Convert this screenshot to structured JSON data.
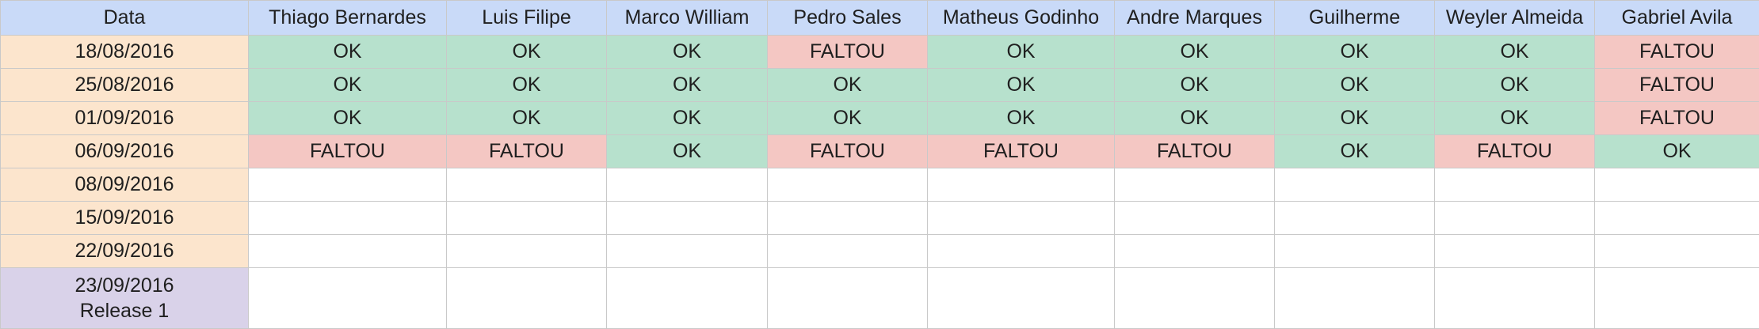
{
  "header": {
    "date_label": "Data",
    "people": [
      "Thiago Bernardes",
      "Luis Filipe",
      "Marco William",
      "Pedro Sales",
      "Matheus Godinho",
      "Andre Marques",
      "Guilherme",
      "Weyler Almeida",
      "Gabriel Avila"
    ]
  },
  "rows": [
    {
      "date": "18/08/2016",
      "cells": [
        "OK",
        "OK",
        "OK",
        "FALTOU",
        "OK",
        "OK",
        "OK",
        "OK",
        "FALTOU"
      ]
    },
    {
      "date": "25/08/2016",
      "cells": [
        "OK",
        "OK",
        "OK",
        "OK",
        "OK",
        "OK",
        "OK",
        "OK",
        "FALTOU"
      ]
    },
    {
      "date": "01/09/2016",
      "cells": [
        "OK",
        "OK",
        "OK",
        "OK",
        "OK",
        "OK",
        "OK",
        "OK",
        "FALTOU"
      ]
    },
    {
      "date": "06/09/2016",
      "cells": [
        "FALTOU",
        "FALTOU",
        "OK",
        "FALTOU",
        "FALTOU",
        "FALTOU",
        "OK",
        "FALTOU",
        "OK"
      ]
    },
    {
      "date": "08/09/2016",
      "cells": [
        "",
        "",
        "",
        "",
        "",
        "",
        "",
        "",
        ""
      ]
    },
    {
      "date": "15/09/2016",
      "cells": [
        "",
        "",
        "",
        "",
        "",
        "",
        "",
        "",
        ""
      ]
    },
    {
      "date": "22/09/2016",
      "cells": [
        "",
        "",
        "",
        "",
        "",
        "",
        "",
        "",
        ""
      ]
    }
  ],
  "release_row": {
    "date": "23/09/2016",
    "label": "Release 1"
  },
  "colors": {
    "header_bg": "#c9daf8",
    "date_bg": "#fce5cd",
    "release_bg": "#d9d2e9",
    "ok_bg": "#b7e1cd",
    "faltou_bg": "#f4c7c3",
    "grid_line": "#c9c9c9"
  }
}
